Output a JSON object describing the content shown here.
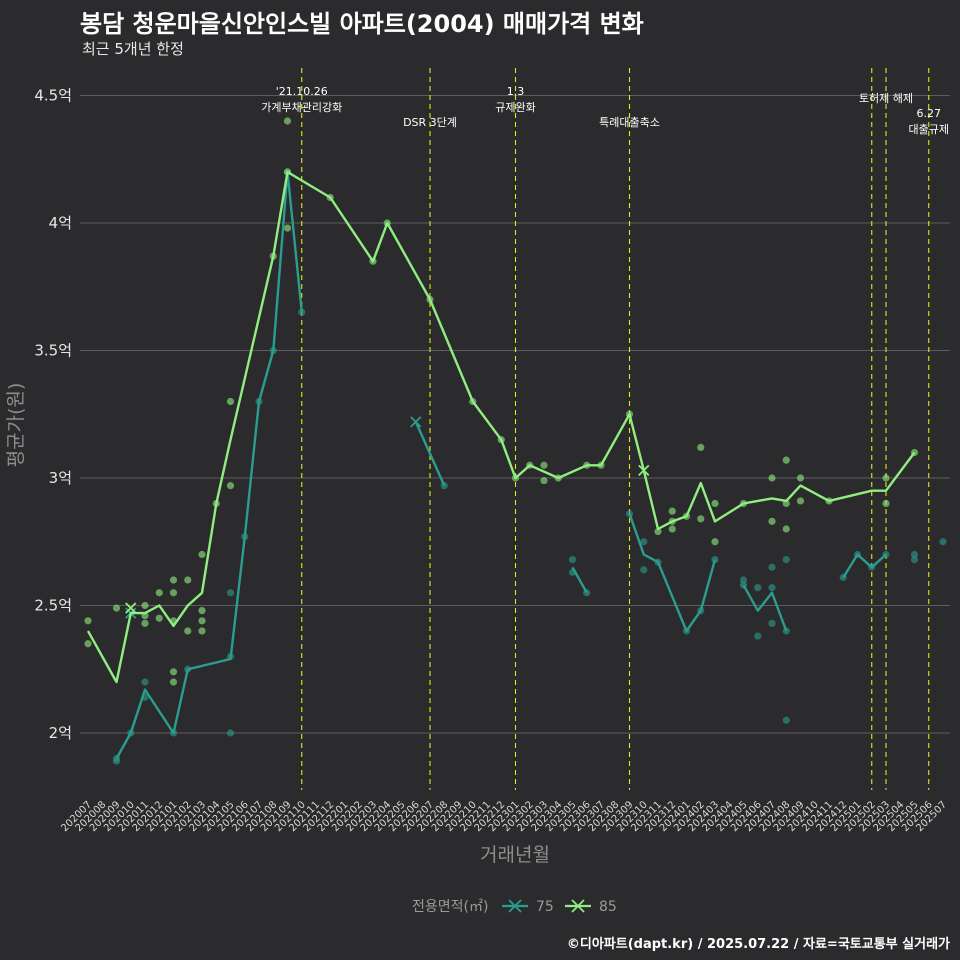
{
  "chart_data": {
    "type": "line",
    "title": "봉담 청운마을신안인스빌 아파트(2004) 매매가격 변화",
    "subtitle": "최근 5개년 한정",
    "caption": "©디아파트(dapt.kr) / 2025.07.22 / 자료=국토교통부 실거래가",
    "xlabel": "거래년월",
    "ylabel": "평균가(원)",
    "ylim": [
      1.8,
      4.6
    ],
    "yticks": [
      2.0,
      2.5,
      3.0,
      3.5,
      4.0,
      4.5
    ],
    "ytick_labels": [
      "2억",
      "2.5억",
      "3억",
      "3.5억",
      "4억",
      "4.5억"
    ],
    "grid": true,
    "categories": [
      "202007",
      "202008",
      "202009",
      "202010",
      "202011",
      "202012",
      "202101",
      "202102",
      "202103",
      "202104",
      "202105",
      "202106",
      "202107",
      "202108",
      "202109",
      "202110",
      "202111",
      "202112",
      "202201",
      "202202",
      "202203",
      "202204",
      "202205",
      "202206",
      "202207",
      "202208",
      "202209",
      "202210",
      "202211",
      "202212",
      "202301",
      "202302",
      "202303",
      "202304",
      "202305",
      "202306",
      "202307",
      "202308",
      "202309",
      "202310",
      "202311",
      "202312",
      "202401",
      "202402",
      "202403",
      "202404",
      "202405",
      "202406",
      "202407",
      "202408",
      "202409",
      "202410",
      "202411",
      "202412",
      "202501",
      "202502",
      "202503",
      "202504",
      "202505",
      "202506",
      "202507"
    ],
    "legend": {
      "title": "전용면적(㎡)",
      "position": "bottom"
    },
    "series": [
      {
        "name": "75",
        "color": "#2a9d8f",
        "segments": [
          [
            [
              "202009",
              1.9
            ],
            [
              "202010",
              2.0
            ],
            [
              "202011",
              2.17
            ],
            [
              "202101",
              2.0
            ],
            [
              "202102",
              2.25
            ],
            [
              "202105",
              2.29
            ],
            [
              "202106",
              2.77
            ],
            [
              "202107",
              3.3
            ],
            [
              "202108",
              3.5
            ],
            [
              "202109",
              4.2
            ],
            [
              "202110",
              3.65
            ]
          ],
          [
            [
              "202206",
              3.22
            ],
            [
              "202208",
              2.97
            ]
          ],
          [
            [
              "202305",
              2.65
            ],
            [
              "202306",
              2.55
            ]
          ],
          [
            [
              "202309",
              2.86
            ],
            [
              "202310",
              2.7
            ],
            [
              "202311",
              2.67
            ],
            [
              "202401",
              2.4
            ],
            [
              "202402",
              2.48
            ],
            [
              "202403",
              2.68
            ]
          ],
          [
            [
              "202405",
              2.58
            ],
            [
              "202406",
              2.48
            ],
            [
              "202407",
              2.55
            ],
            [
              "202408",
              2.4
            ]
          ],
          [
            [
              "202412",
              2.61
            ],
            [
              "202501",
              2.7
            ],
            [
              "202502",
              2.65
            ],
            [
              "202503",
              2.7
            ]
          ]
        ],
        "points": [
          [
            "202009",
            1.89
          ],
          [
            "202009",
            1.9
          ],
          [
            "202010",
            2.0
          ],
          [
            "202011",
            2.2
          ],
          [
            "202011",
            2.14
          ],
          [
            "202101",
            2.0
          ],
          [
            "202102",
            2.25
          ],
          [
            "202105",
            2.55
          ],
          [
            "202105",
            2.3
          ],
          [
            "202105",
            2.0
          ],
          [
            "202106",
            2.77
          ],
          [
            "202107",
            3.3
          ],
          [
            "202108",
            3.5
          ],
          [
            "202109",
            4.2
          ],
          [
            "202110",
            3.65
          ],
          [
            "202208",
            2.97
          ],
          [
            "202305",
            2.68
          ],
          [
            "202305",
            2.63
          ],
          [
            "202306",
            2.55
          ],
          [
            "202309",
            2.86
          ],
          [
            "202310",
            2.75
          ],
          [
            "202310",
            2.64
          ],
          [
            "202311",
            2.67
          ],
          [
            "202401",
            2.4
          ],
          [
            "202402",
            2.48
          ],
          [
            "202403",
            2.68
          ],
          [
            "202405",
            2.6
          ],
          [
            "202405",
            2.58
          ],
          [
            "202406",
            2.38
          ],
          [
            "202406",
            2.57
          ],
          [
            "202407",
            2.57
          ],
          [
            "202407",
            2.43
          ],
          [
            "202407",
            2.65
          ],
          [
            "202408",
            2.4
          ],
          [
            "202408",
            2.05
          ],
          [
            "202408",
            2.68
          ],
          [
            "202412",
            2.61
          ],
          [
            "202501",
            2.7
          ],
          [
            "202502",
            2.65
          ],
          [
            "202503",
            2.7
          ],
          [
            "202505",
            2.7
          ],
          [
            "202505",
            2.68
          ],
          [
            "202507",
            2.75
          ]
        ],
        "crosses": [
          [
            "202206",
            3.22
          ],
          [
            "202010",
            2.47
          ]
        ]
      },
      {
        "name": "85",
        "color": "#90ee80",
        "segments": [
          [
            [
              "202007",
              2.4
            ],
            [
              "202009",
              2.2
            ],
            [
              "202010",
              2.47
            ],
            [
              "202011",
              2.47
            ],
            [
              "202012",
              2.5
            ],
            [
              "202101",
              2.42
            ],
            [
              "202102",
              2.5
            ],
            [
              "202103",
              2.55
            ],
            [
              "202104",
              2.9
            ],
            [
              "202105",
              3.15
            ],
            [
              "202108",
              3.87
            ],
            [
              "202109",
              4.2
            ],
            [
              "202112",
              4.1
            ],
            [
              "202203",
              3.85
            ],
            [
              "202204",
              4.0
            ],
            [
              "202207",
              3.7
            ],
            [
              "202210",
              3.3
            ],
            [
              "202212",
              3.15
            ],
            [
              "202301",
              3.0
            ],
            [
              "202302",
              3.05
            ],
            [
              "202304",
              3.0
            ],
            [
              "202306",
              3.05
            ],
            [
              "202307",
              3.05
            ],
            [
              "202309",
              3.25
            ],
            [
              "202310",
              3.03
            ],
            [
              "202311",
              2.8
            ],
            [
              "202312",
              2.83
            ],
            [
              "202401",
              2.85
            ],
            [
              "202402",
              2.98
            ],
            [
              "202403",
              2.83
            ],
            [
              "202405",
              2.9
            ],
            [
              "202407",
              2.92
            ],
            [
              "202408",
              2.91
            ],
            [
              "202409",
              2.97
            ],
            [
              "202411",
              2.91
            ],
            [
              "202502",
              2.95
            ],
            [
              "202503",
              2.95
            ],
            [
              "202505",
              3.1
            ]
          ]
        ],
        "points": [
          [
            "202007",
            2.44
          ],
          [
            "202007",
            2.35
          ],
          [
            "202009",
            2.49
          ],
          [
            "202011",
            2.5
          ],
          [
            "202011",
            2.43
          ],
          [
            "202011",
            2.46
          ],
          [
            "202012",
            2.55
          ],
          [
            "202012",
            2.45
          ],
          [
            "202101",
            2.55
          ],
          [
            "202101",
            2.6
          ],
          [
            "202101",
            2.44
          ],
          [
            "202101",
            2.24
          ],
          [
            "202101",
            2.2
          ],
          [
            "202102",
            2.6
          ],
          [
            "202102",
            2.4
          ],
          [
            "202103",
            2.7
          ],
          [
            "202103",
            2.48
          ],
          [
            "202103",
            2.44
          ],
          [
            "202103",
            2.4
          ],
          [
            "202104",
            2.9
          ],
          [
            "202105",
            3.3
          ],
          [
            "202105",
            2.97
          ],
          [
            "202108",
            3.87
          ],
          [
            "202109",
            4.4
          ],
          [
            "202109",
            4.2
          ],
          [
            "202109",
            3.98
          ],
          [
            "202112",
            4.1
          ],
          [
            "202203",
            3.85
          ],
          [
            "202204",
            4.0
          ],
          [
            "202207",
            3.7
          ],
          [
            "202210",
            3.3
          ],
          [
            "202212",
            3.15
          ],
          [
            "202301",
            3.0
          ],
          [
            "202302",
            3.05
          ],
          [
            "202303",
            3.05
          ],
          [
            "202303",
            2.99
          ],
          [
            "202304",
            3.0
          ],
          [
            "202306",
            3.05
          ],
          [
            "202307",
            3.05
          ],
          [
            "202309",
            3.25
          ],
          [
            "202311",
            2.79
          ],
          [
            "202312",
            2.87
          ],
          [
            "202312",
            2.83
          ],
          [
            "202312",
            2.8
          ],
          [
            "202401",
            2.85
          ],
          [
            "202402",
            3.12
          ],
          [
            "202402",
            2.84
          ],
          [
            "202403",
            2.9
          ],
          [
            "202403",
            2.75
          ],
          [
            "202405",
            2.9
          ],
          [
            "202407",
            3.0
          ],
          [
            "202407",
            2.83
          ],
          [
            "202408",
            3.07
          ],
          [
            "202408",
            2.9
          ],
          [
            "202408",
            2.8
          ],
          [
            "202409",
            3.0
          ],
          [
            "202409",
            2.91
          ],
          [
            "202411",
            2.91
          ],
          [
            "202503",
            3.0
          ],
          [
            "202503",
            2.9
          ],
          [
            "202505",
            3.1
          ]
        ],
        "crosses": [
          [
            "202010",
            2.49
          ],
          [
            "202310",
            3.03
          ]
        ]
      }
    ],
    "events": [
      {
        "x": "202110",
        "lines": [
          "'21.10.26",
          "가계부채관리강화"
        ],
        "row": 0
      },
      {
        "x": "202207",
        "lines": [
          "DSR 3단계"
        ],
        "row": 1
      },
      {
        "x": "202301",
        "lines": [
          "1.3",
          "규제완화"
        ],
        "row": 0
      },
      {
        "x": "202309",
        "lines": [
          "특례대출축소"
        ],
        "row": 1
      },
      {
        "x": "202502",
        "lines": [],
        "row": 0
      },
      {
        "x": "202503",
        "lines": [
          "토허제 해제"
        ],
        "row": 0
      },
      {
        "x": "202506",
        "lines": [
          "6.27",
          "대출규제"
        ],
        "row": 2
      }
    ]
  }
}
